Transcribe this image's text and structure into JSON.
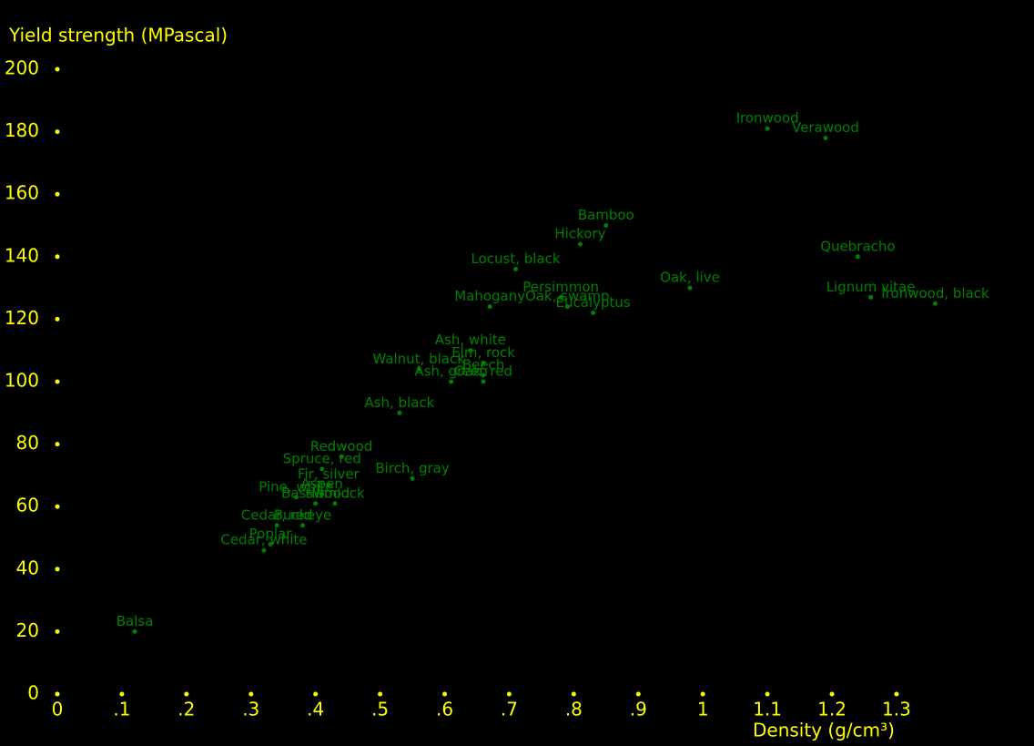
{
  "chart_data": {
    "type": "scatter",
    "y_label": "Yield strength (MPascal)",
    "x_label": "Density (g/cm³)",
    "axis_color": "#ffff00",
    "color": "#008000",
    "xlim": [
      0,
      1.5
    ],
    "ylim": [
      0,
      200
    ],
    "xticks": [
      0,
      {
        "value": 0.1,
        "label": ".1"
      },
      {
        "value": 0.2,
        "label": ".2"
      },
      {
        "value": 0.3,
        "label": ".3"
      },
      {
        "value": 0.4,
        "label": ".4"
      },
      {
        "value": 0.5,
        "label": ".5"
      },
      {
        "value": 0.6,
        "label": ".6"
      },
      {
        "value": 0.7,
        "label": ".7"
      },
      {
        "value": 0.8,
        "label": ".8"
      },
      {
        "value": 0.9,
        "label": ".9"
      },
      1,
      1.1,
      1.2,
      1.3
    ],
    "yticks": [
      0,
      20,
      40,
      60,
      80,
      100,
      120,
      140,
      160,
      180,
      200
    ],
    "names": [
      "Balsa",
      "Cedar, white",
      "Poplar",
      "Cedar, red",
      "Buckeye",
      "Pine, white",
      "Basswood",
      "Aspen",
      "Hemlock",
      "Fir, silver",
      "Spruce, red",
      "Redwood",
      "Birch, gray",
      "Ash, black",
      "Walnut, black",
      "Ash, green",
      "Oak, red",
      "Beech",
      "Elm, rock",
      "Ash, white",
      "Mahogany",
      "Oak, swamp",
      "Persimmon",
      "Eucalyptus",
      "Locust, black",
      "Hickory",
      "Bamboo",
      "Oak, live",
      "Quebracho",
      "Lignum vitae",
      "Ironwood, black",
      "Ironwood",
      "Verawood"
    ],
    "x": [
      0.12,
      0.32,
      0.33,
      0.34,
      0.38,
      0.37,
      0.4,
      0.41,
      0.43,
      0.42,
      0.41,
      0.44,
      0.55,
      0.53,
      0.56,
      0.61,
      0.66,
      0.66,
      0.66,
      0.64,
      0.67,
      0.79,
      0.78,
      0.83,
      0.71,
      0.81,
      0.85,
      0.98,
      1.24,
      1.26,
      1.36,
      1.1,
      1.19
    ],
    "values": [
      20,
      46,
      48,
      54,
      54,
      63,
      61,
      64,
      61,
      67,
      72,
      76,
      69,
      90,
      104,
      100,
      100,
      102,
      106,
      110,
      124,
      124,
      127,
      122,
      136,
      144,
      150,
      130,
      140,
      127,
      125,
      181,
      178
    ]
  }
}
